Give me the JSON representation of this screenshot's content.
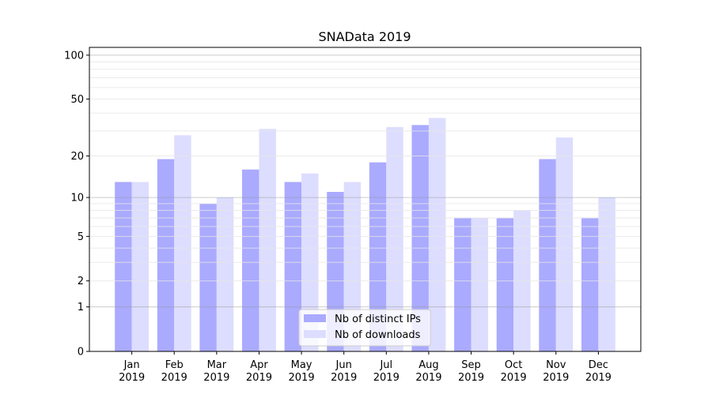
{
  "chart_data": {
    "type": "bar",
    "title": "SNAData 2019",
    "xlabel": "",
    "ylabel": "",
    "yscale": "log10(1+y)",
    "ylim": [
      0,
      113
    ],
    "xlim": [
      -1,
      12
    ],
    "yticks": [
      0,
      1,
      2,
      5,
      10,
      20,
      50,
      100
    ],
    "grid": true,
    "legend_position": "lower center",
    "categories": [
      "Jan\n2019",
      "Feb\n2019",
      "Mar\n2019",
      "Apr\n2019",
      "May\n2019",
      "Jun\n2019",
      "Jul\n2019",
      "Aug\n2019",
      "Sep\n2019",
      "Oct\n2019",
      "Nov\n2019",
      "Dec\n2019"
    ],
    "series": [
      {
        "name": "Nb of distinct IPs",
        "color": "#aaaaff",
        "values": [
          13,
          19,
          9,
          16,
          13,
          11,
          18,
          33,
          7,
          7,
          19,
          7
        ]
      },
      {
        "name": "Nb of downloads",
        "color": "#ddddff",
        "values": [
          13,
          28,
          10,
          31,
          15,
          13,
          32,
          37,
          7,
          8,
          27,
          10
        ]
      }
    ]
  }
}
